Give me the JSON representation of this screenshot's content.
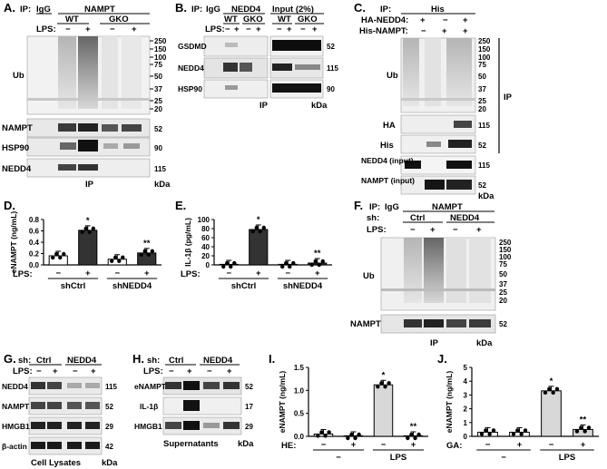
{
  "panelA": {
    "letter": "A.",
    "ip_label": "IP:",
    "col_igg": "IgG",
    "col_target": "NAMPT",
    "genotype_wt": "WT",
    "genotype_gko": "GKO",
    "lps_label": "LPS:",
    "lps_signs": [
      "−",
      "+",
      "−",
      "+"
    ],
    "blot_labels": [
      "Ub",
      "NAMPT",
      "HSP90",
      "NEDD4"
    ],
    "ub_markers": [
      "250",
      "150",
      "100",
      "75",
      "50",
      "37",
      "25",
      "20"
    ],
    "right_markers": [
      "52",
      "90",
      "115"
    ],
    "footer_ip": "IP",
    "footer_kda": "kDa"
  },
  "panelB": {
    "letter": "B.",
    "ip_label": "IP:",
    "col_igg": "IgG",
    "col_target": "NEDD4",
    "col_input": "Input (2%)",
    "genotypes": [
      "WT",
      "GKO",
      "WT",
      "GKO"
    ],
    "lps_label": "LPS:",
    "lps_signs": [
      "−",
      "+",
      "−",
      "+",
      "−",
      "+",
      "−",
      "+"
    ],
    "blot_labels": [
      "GSDMD",
      "NEDD4",
      "HSP90"
    ],
    "markers": [
      "52",
      "115",
      "90"
    ],
    "footer_ip": "IP",
    "footer_kda": "kDa"
  },
  "panelC": {
    "letter": "C.",
    "ip_label": "IP:",
    "ip_target": "His",
    "row1_label": "HA-NEDD4:",
    "row2_label": "His-NAMPT:",
    "row1_signs": [
      "+",
      "−",
      "+"
    ],
    "row2_signs": [
      "−",
      "+",
      "+"
    ],
    "blot_labels": [
      "Ub",
      "HA",
      "His",
      "NEDD4 (input)",
      "NAMPT (input)"
    ],
    "ub_markers": [
      "250",
      "150",
      "100",
      "75",
      "50",
      "37",
      "25",
      "20"
    ],
    "markers": [
      "115",
      "52",
      "115",
      "52"
    ],
    "side_ip": "IP",
    "footer_kda": "kDa"
  },
  "panelD": {
    "letter": "D.",
    "chart_data": {
      "type": "bar",
      "ylabel": "eNAMPT (ng/mL)",
      "ylim": [
        0,
        0.8
      ],
      "yticks": [
        "0.0",
        "0.2",
        "0.4",
        "0.6",
        "0.8"
      ],
      "lps_label": "LPS:",
      "lps_signs": [
        "−",
        "+",
        "−",
        "+"
      ],
      "groups": [
        "shCtrl",
        "shNEDD4"
      ],
      "values": [
        0.16,
        0.61,
        0.1,
        0.21
      ],
      "colors": [
        "#ffffff",
        "#333333",
        "#ffffff",
        "#333333"
      ],
      "annotations": [
        "",
        "*",
        "",
        "**"
      ]
    }
  },
  "panelE": {
    "letter": "E.",
    "chart_data": {
      "type": "bar",
      "ylabel": "IL-1β (pg/mL)",
      "ylim": [
        0,
        100
      ],
      "yticks": [
        "0",
        "20",
        "40",
        "60",
        "80",
        "100"
      ],
      "lps_label": "LPS:",
      "lps_signs": [
        "−",
        "+",
        "−",
        "+"
      ],
      "groups": [
        "shCtrl",
        "shNEDD4"
      ],
      "values": [
        0,
        78,
        0,
        4
      ],
      "colors": [
        "#ffffff",
        "#333333",
        "#ffffff",
        "#333333"
      ],
      "annotations": [
        "",
        "*",
        "",
        "**"
      ]
    }
  },
  "panelF": {
    "letter": "F.",
    "ip_label": "IP:",
    "col_igg": "IgG",
    "col_target": "NAMPT",
    "sh_label": "sh:",
    "sh_groups": [
      "Ctrl",
      "NEDD4"
    ],
    "lps_label": "LPS:",
    "lps_signs": [
      "−",
      "+",
      "−",
      "+"
    ],
    "blot_labels": [
      "Ub",
      "NAMPT"
    ],
    "ub_markers": [
      "250",
      "150",
      "100",
      "75",
      "50",
      "37",
      "25",
      "20"
    ],
    "markers": [
      "52"
    ],
    "footer_ip": "IP",
    "footer_kda": "kDa"
  },
  "panelG": {
    "letter": "G.",
    "sh_label": "sh:",
    "sh_groups": [
      "Ctrl",
      "NEDD4"
    ],
    "lps_label": "LPS:",
    "lps_signs": [
      "−",
      "+",
      "−",
      "+"
    ],
    "blot_labels": [
      "NEDD4",
      "NAMPT",
      "HMGB1",
      "β-actin"
    ],
    "markers": [
      "115",
      "52",
      "29",
      "42"
    ],
    "footer": "Cell Lysates",
    "footer_kda": "kDa"
  },
  "panelH": {
    "letter": "H.",
    "sh_label": "sh:",
    "sh_groups": [
      "Ctrl",
      "NEDD4"
    ],
    "lps_label": "LPS:",
    "lps_signs": [
      "−",
      "+",
      "−",
      "+"
    ],
    "blot_labels": [
      "eNAMPT",
      "IL-1β",
      "HMGB1"
    ],
    "markers": [
      "52",
      "17",
      "29"
    ],
    "footer": "Supernatants",
    "footer_kda": "kDa"
  },
  "panelI": {
    "letter": "I.",
    "chart_data": {
      "type": "bar",
      "ylabel": "eNAMPT (ng/mL)",
      "ylim": [
        0,
        1.5
      ],
      "yticks": [
        "0.0",
        "0.5",
        "1.0",
        "1.5"
      ],
      "treat_label": "HE:",
      "treat_signs": [
        "−",
        "+",
        "−",
        "+"
      ],
      "groups": [
        "−",
        "LPS"
      ],
      "values": [
        0.05,
        0.0,
        1.12,
        0.0
      ],
      "colors": [
        "#ffffff",
        "#ffffff",
        "#d8d8d8",
        "#d8d8d8"
      ],
      "annotations": [
        "",
        "",
        "*",
        "**"
      ]
    }
  },
  "panelJ": {
    "letter": "J.",
    "chart_data": {
      "type": "bar",
      "ylabel": "eNAMPT (ng/mL)",
      "ylim": [
        0,
        5
      ],
      "yticks": [
        "0",
        "1",
        "2",
        "3",
        "4",
        "5"
      ],
      "treat_label": "GA:",
      "treat_signs": [
        "−",
        "+",
        "−",
        "+"
      ],
      "groups": [
        "−",
        "LPS"
      ],
      "values": [
        0.3,
        0.3,
        3.3,
        0.5
      ],
      "colors": [
        "#ffffff",
        "#ffffff",
        "#d8d8d8",
        "#d8d8d8"
      ],
      "annotations": [
        "",
        "",
        "*",
        "**"
      ]
    }
  }
}
